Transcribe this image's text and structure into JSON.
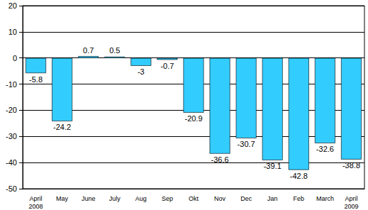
{
  "chart_data": {
    "type": "bar",
    "categories": [
      "April\n2008",
      "May",
      "June",
      "July",
      "Aug",
      "Sep",
      "Okt",
      "Nov",
      "Dec",
      "Jan",
      "Feb",
      "March",
      "April\n2009"
    ],
    "values": [
      -5.8,
      -24.2,
      0.7,
      0.5,
      -3,
      -0.7,
      -20.9,
      -36.6,
      -30.7,
      -39.1,
      -42.8,
      -32.6,
      -38.8
    ],
    "color": "#33ccff",
    "ylim": [
      -50,
      20
    ],
    "yticks": [
      -50,
      -40,
      -30,
      -20,
      -10,
      0,
      10,
      20
    ],
    "grid": true,
    "data_labels": true
  }
}
